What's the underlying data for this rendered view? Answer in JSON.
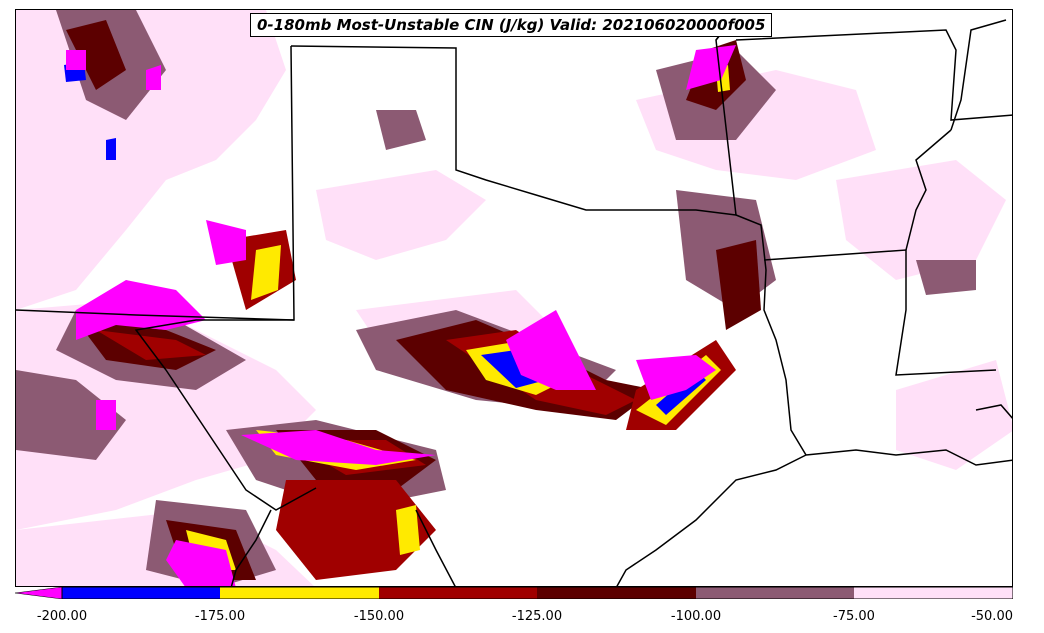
{
  "title": "0-180mb Most-Unstable CIN (J/kg) Valid: 202106020000f005",
  "colorbar": {
    "ticks": [
      "-200.00",
      "-175.00",
      "-150.00",
      "-125.00",
      "-100.00",
      "-75.00",
      "-50.00"
    ],
    "levels": [
      {
        "range": "< -200",
        "color": "#ff00ff"
      },
      {
        "range": "-200 to -175",
        "color": "#0000ff"
      },
      {
        "range": "-175 to -150",
        "color": "#ffea00"
      },
      {
        "range": "-150 to -125",
        "color": "#a00000"
      },
      {
        "range": "-125 to -100",
        "color": "#5c0000"
      },
      {
        "range": "-100 to -75",
        "color": "#8c5a73"
      },
      {
        "range": "-75 to -50",
        "color": "#ffe0f8"
      }
    ]
  }
}
